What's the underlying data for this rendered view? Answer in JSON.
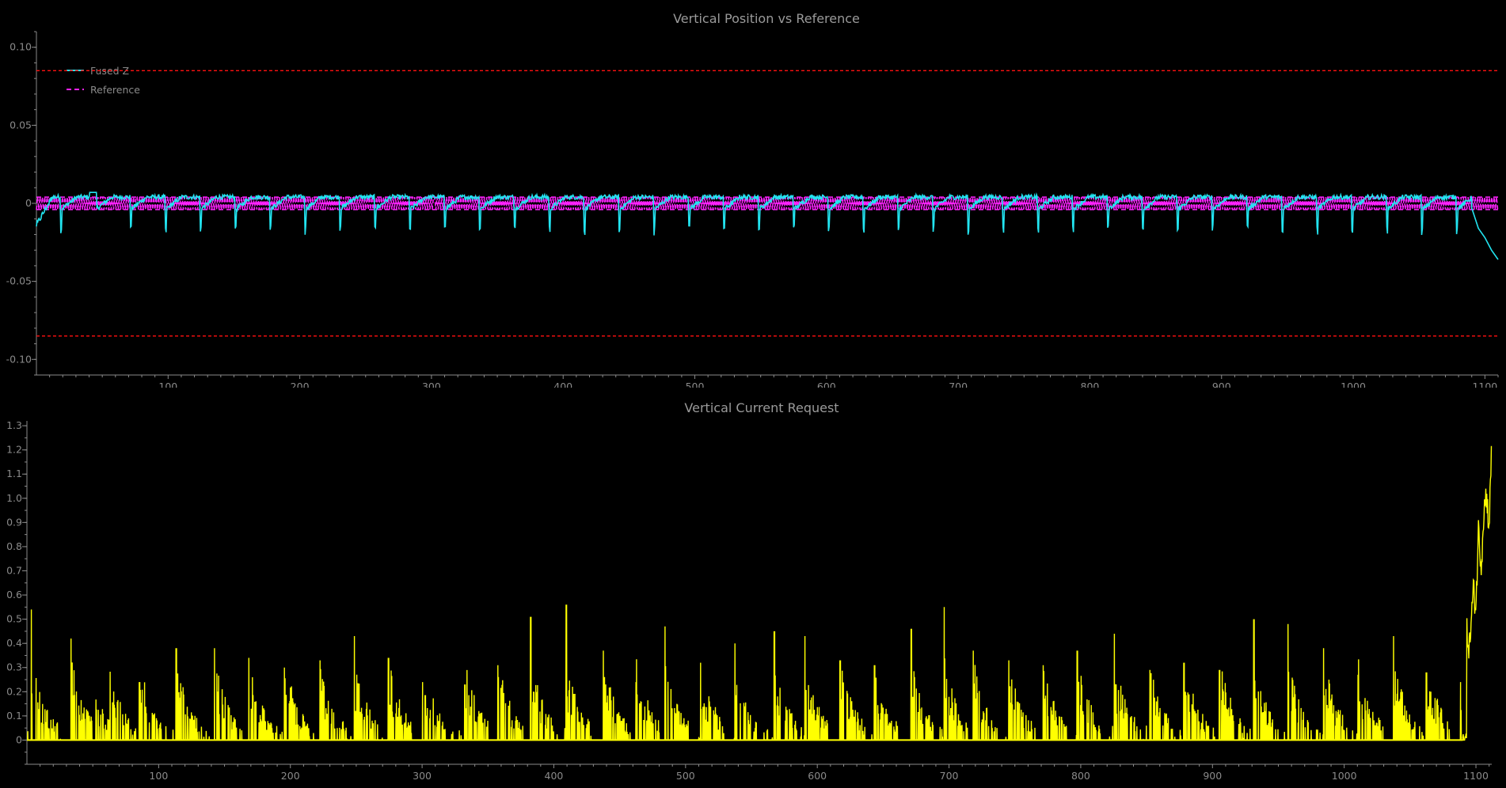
{
  "colors": {
    "background": "#000000",
    "axis": "#8a8a8a",
    "fused_z": "#22e4f0",
    "reference": "#ff22ff",
    "limit": "#ff1010",
    "current": "#ffff00"
  },
  "chart_data": [
    {
      "type": "line",
      "title": "Vertical Position vs Reference",
      "xlabel": "",
      "ylabel": "",
      "xlim": [
        0,
        1110
      ],
      "ylim": [
        -0.11,
        0.11
      ],
      "x_ticks": [
        100,
        200,
        300,
        400,
        500,
        600,
        700,
        800,
        900,
        1000,
        1100
      ],
      "y_ticks": [
        {
          "value": 0.1,
          "label": "0.10"
        },
        {
          "value": 0.05,
          "label": "0.05"
        },
        {
          "value": 0.0,
          "label": "0"
        },
        {
          "value": -0.05,
          "label": "-0.05"
        },
        {
          "value": -0.1,
          "label": "-0.10"
        }
      ],
      "legend_position": "top-left",
      "grid": false,
      "limit_lines": [
        0.085,
        -0.085
      ],
      "series": [
        {
          "name": "Fused Z",
          "style": "solid",
          "x": [
            0,
            3,
            6,
            10,
            20,
            30,
            40,
            45,
            52,
            60,
            80,
            88,
            100,
            140,
            168,
            200,
            230,
            250,
            300,
            350,
            400,
            450,
            500,
            550,
            600,
            650,
            700,
            750,
            800,
            850,
            900,
            950,
            1000,
            1050,
            1090,
            1095,
            1100,
            1105,
            1110
          ],
          "y": [
            0.0,
            -0.012,
            -0.016,
            0.004,
            0.004,
            0.005,
            0.005,
            0.008,
            -0.006,
            -0.003,
            0.004,
            -0.011,
            -0.003,
            0.003,
            -0.012,
            0.003,
            -0.007,
            -0.011,
            0.003,
            0.002,
            0.003,
            0.003,
            0.003,
            0.003,
            0.003,
            0.003,
            -0.008,
            0.002,
            0.002,
            0.002,
            0.002,
            0.002,
            0.002,
            -0.012,
            -0.003,
            -0.016,
            -0.022,
            -0.03,
            -0.036
          ]
        },
        {
          "name": "Reference",
          "style": "dashed",
          "x": [
            0,
            1110
          ],
          "y_band": [
            -0.004,
            0.004
          ]
        }
      ]
    },
    {
      "type": "line",
      "title": "Vertical Current Request",
      "xlabel": "",
      "ylabel": "",
      "xlim": [
        0,
        1112
      ],
      "ylim": [
        -0.1,
        1.32
      ],
      "x_ticks": [
        100,
        200,
        300,
        400,
        500,
        600,
        700,
        800,
        900,
        1000,
        1100
      ],
      "y_ticks": [
        {
          "value": 1.3,
          "label": "1.3"
        },
        {
          "value": 1.2,
          "label": "1.2"
        },
        {
          "value": 1.1,
          "label": "1.1"
        },
        {
          "value": 1.0,
          "label": "1.0"
        },
        {
          "value": 0.9,
          "label": "0.9"
        },
        {
          "value": 0.8,
          "label": "0.8"
        },
        {
          "value": 0.7,
          "label": "0.7"
        },
        {
          "value": 0.6,
          "label": "0.6"
        },
        {
          "value": 0.5,
          "label": "0.5"
        },
        {
          "value": 0.4,
          "label": "0.4"
        },
        {
          "value": 0.3,
          "label": "0.3"
        },
        {
          "value": 0.2,
          "label": "0.2"
        },
        {
          "value": 0.1,
          "label": "0.1"
        },
        {
          "value": 0.0,
          "label": "0"
        }
      ],
      "grid": false,
      "series": [
        {
          "name": "",
          "spike_x": [
            3,
            5,
            33,
            45,
            62,
            85,
            113,
            142,
            168,
            195,
            222,
            248,
            274,
            300,
            332,
            357,
            382,
            409,
            437,
            462,
            484,
            511,
            537,
            567,
            590,
            617,
            643,
            671,
            696,
            718,
            745,
            771,
            797,
            825,
            852,
            878,
            905,
            931,
            957,
            984,
            1010,
            1037,
            1062,
            1088
          ],
          "spike_y": [
            0.54,
            0.57,
            0.42,
            0.29,
            0.31,
            0.24,
            0.38,
            0.38,
            0.34,
            0.3,
            0.33,
            0.43,
            0.34,
            0.24,
            0.23,
            0.31,
            0.51,
            0.56,
            0.37,
            0.24,
            0.47,
            0.32,
            0.4,
            0.45,
            0.43,
            0.33,
            0.31,
            0.46,
            0.55,
            0.37,
            0.33,
            0.31,
            0.37,
            0.44,
            0.29,
            0.32,
            0.29,
            0.5,
            0.48,
            0.38,
            0.27,
            0.43,
            0.28,
            0.24
          ],
          "tail_x": [
            1093,
            1095,
            1098,
            1100,
            1102,
            1104,
            1106,
            1108,
            1110,
            1112
          ],
          "tail_y": [
            0.45,
            0.38,
            0.62,
            0.55,
            0.88,
            0.72,
            0.95,
            1.02,
            0.88,
            1.23
          ]
        }
      ]
    }
  ]
}
